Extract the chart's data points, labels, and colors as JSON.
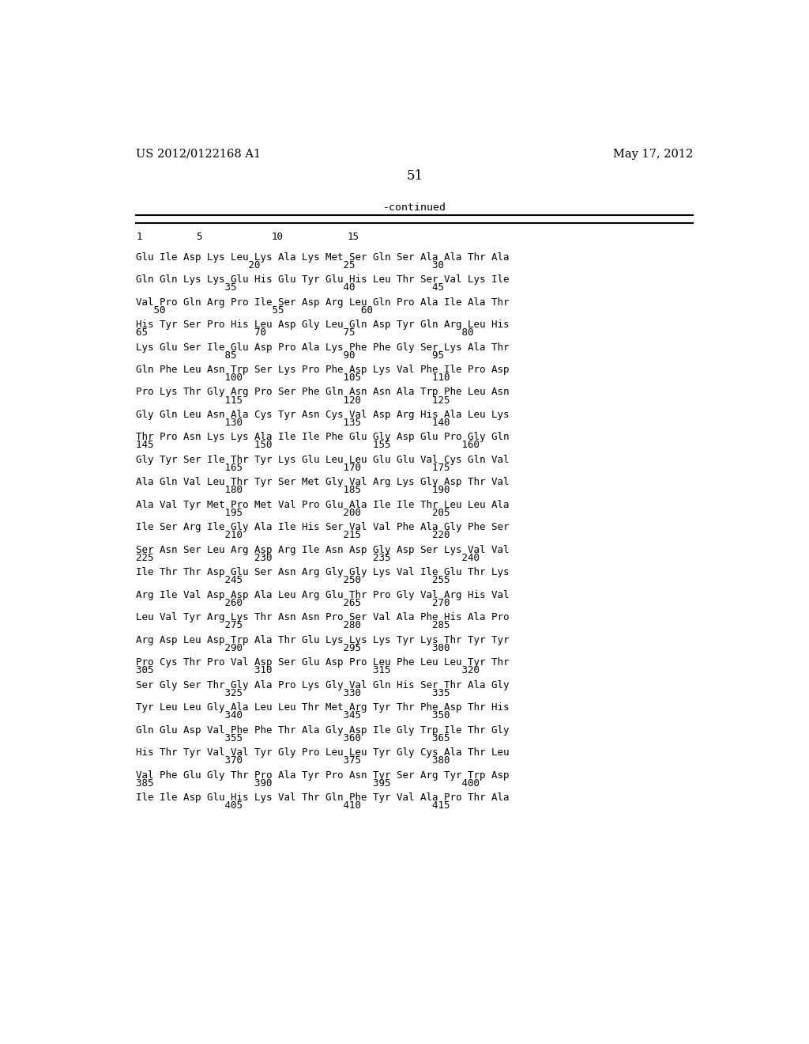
{
  "header_left": "US 2012/0122168 A1",
  "header_right": "May 17, 2012",
  "page_number": "51",
  "continued_label": "-continued",
  "background_color": "#ffffff",
  "text_color": "#000000",
  "blocks": [
    [
      "Glu Ile Asp Lys Leu Lys Ala Lys Met Ser Gln Ser Ala Ala Thr Ala",
      "                   20              25             30"
    ],
    [
      "Gln Gln Lys Lys Glu His Glu Tyr Glu His Leu Thr Ser Val Lys Ile",
      "               35                  40             45"
    ],
    [
      "Val Pro Gln Arg Pro Ile Ser Asp Arg Leu Gln Pro Ala Ile Ala Thr",
      "   50                  55             60"
    ],
    [
      "His Tyr Ser Pro His Leu Asp Gly Leu Gln Asp Tyr Gln Arg Leu His",
      "65                  70             75                  80"
    ],
    [
      "Lys Glu Ser Ile Glu Asp Pro Ala Lys Phe Phe Gly Ser Lys Ala Thr",
      "               85                  90             95"
    ],
    [
      "Gln Phe Leu Asn Trp Ser Lys Pro Phe Asp Lys Val Phe Ile Pro Asp",
      "               100                 105            110"
    ],
    [
      "Pro Lys Thr Gly Arg Pro Ser Phe Gln Asn Asn Ala Trp Phe Leu Asn",
      "               115                 120            125"
    ],
    [
      "Gly Gln Leu Asn Ala Cys Tyr Asn Cys Val Asp Arg His Ala Leu Lys",
      "               130                 135            140"
    ],
    [
      "Thr Pro Asn Lys Lys Ala Ile Ile Phe Glu Gly Asp Glu Pro Gly Gln",
      "145                 150                 155            160"
    ],
    [
      "Gly Tyr Ser Ile Thr Tyr Lys Glu Leu Leu Glu Glu Val Cys Gln Val",
      "               165                 170            175"
    ],
    [
      "Ala Gln Val Leu Thr Tyr Ser Met Gly Val Arg Lys Gly Asp Thr Val",
      "               180                 185            190"
    ],
    [
      "Ala Val Tyr Met Pro Met Val Pro Glu Ala Ile Ile Thr Leu Leu Ala",
      "               195                 200            205"
    ],
    [
      "Ile Ser Arg Ile Gly Ala Ile His Ser Val Val Phe Ala Gly Phe Ser",
      "               210                 215            220"
    ],
    [
      "Ser Asn Ser Leu Arg Asp Arg Ile Asn Asp Gly Asp Ser Lys Val Val",
      "225                 230                 235            240"
    ],
    [
      "Ile Thr Thr Asp Glu Ser Asn Arg Gly Gly Lys Val Ile Glu Thr Lys",
      "               245                 250            255"
    ],
    [
      "Arg Ile Val Asp Asp Ala Leu Arg Glu Thr Pro Gly Val Arg His Val",
      "               260                 265            270"
    ],
    [
      "Leu Val Tyr Arg Lys Thr Asn Asn Pro Ser Val Ala Phe His Ala Pro",
      "               275                 280            285"
    ],
    [
      "Arg Asp Leu Asp Trp Ala Thr Glu Lys Lys Lys Tyr Lys Thr Tyr Tyr",
      "               290                 295            300"
    ],
    [
      "Pro Cys Thr Pro Val Asp Ser Glu Asp Pro Leu Phe Leu Leu Tyr Thr",
      "305                 310                 315            320"
    ],
    [
      "Ser Gly Ser Thr Gly Ala Pro Lys Gly Val Gln His Ser Thr Ala Gly",
      "               325                 330            335"
    ],
    [
      "Tyr Leu Leu Gly Ala Leu Leu Thr Met Arg Tyr Thr Phe Asp Thr His",
      "               340                 345            350"
    ],
    [
      "Gln Glu Asp Val Phe Phe Thr Ala Gly Asp Ile Gly Trp Ile Thr Gly",
      "               355                 360            365"
    ],
    [
      "His Thr Tyr Val Val Tyr Gly Pro Leu Leu Tyr Gly Cys Ala Thr Leu",
      "               370                 375            380"
    ],
    [
      "Val Phe Glu Gly Thr Pro Ala Tyr Pro Asn Tyr Ser Arg Tyr Trp Asp",
      "385                 390                 395            400"
    ],
    [
      "Ile Ile Asp Glu His Lys Val Thr Gln Phe Tyr Val Ala Pro Thr Ala",
      "               405                 410            415"
    ]
  ]
}
